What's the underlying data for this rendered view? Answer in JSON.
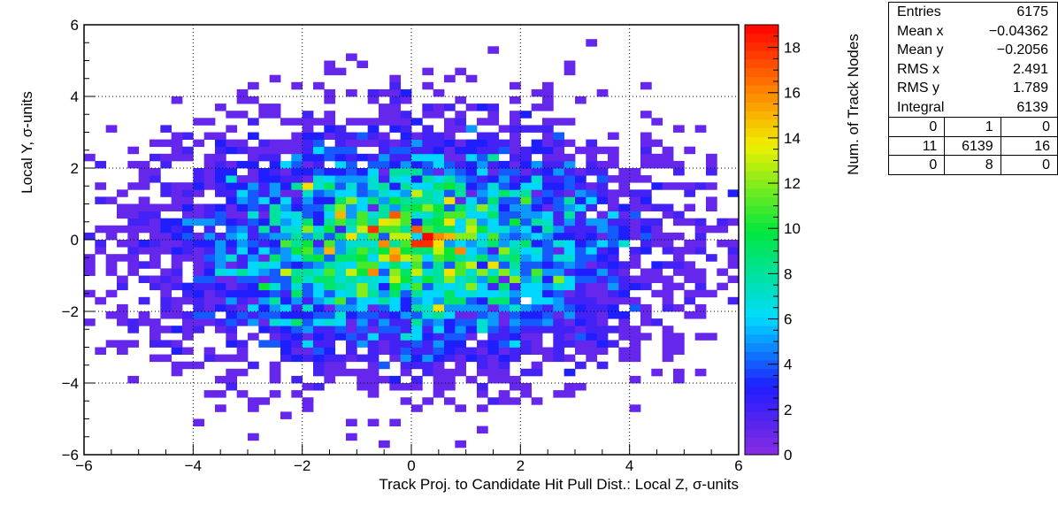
{
  "chart_data": {
    "type": "heatmap",
    "title": "",
    "xlabel": "Track Proj. to Candidate Hit Pull Dist.: Local Z, σ-units",
    "ylabel": "Local Y, σ-units",
    "zlabel": "Num. of Track Nodes",
    "xlim": [
      -6,
      6
    ],
    "ylim": [
      -6,
      6
    ],
    "zlim": [
      0,
      19
    ],
    "bins_x": 60,
    "bins_y": 60,
    "grid": true,
    "x_ticks": [
      "−6",
      "−4",
      "−2",
      "0",
      "2",
      "4",
      "6"
    ],
    "y_ticks": [
      "−6",
      "−4",
      "−2",
      "0",
      "2",
      "4",
      "6"
    ],
    "z_ticks": [
      "0",
      "2",
      "4",
      "6",
      "8",
      "10",
      "12",
      "14",
      "16",
      "18"
    ],
    "distribution": {
      "mean_x": -0.04362,
      "mean_y": -0.2056,
      "rms_x": 2.491,
      "rms_y": 1.789,
      "entries": 6175,
      "peak": 19
    },
    "hot_cells": [
      {
        "x": 0.3,
        "y": 0.1,
        "z": 19
      },
      {
        "x": 0.3,
        "y": -0.1,
        "z": 18
      },
      {
        "x": 0.1,
        "y": 0.3,
        "z": 17
      },
      {
        "x": 0.5,
        "y": 0.1,
        "z": 16
      },
      {
        "x": 0.9,
        "y": -0.3,
        "z": 16
      },
      {
        "x": -1.3,
        "y": 0.7,
        "z": 15
      },
      {
        "x": 0.7,
        "y": 0.5,
        "z": 14
      },
      {
        "x": -0.5,
        "y": 0.5,
        "z": 14
      },
      {
        "x": 0.1,
        "y": 1.3,
        "z": 13
      },
      {
        "x": -0.3,
        "y": 0.1,
        "z": 13
      },
      {
        "x": 1.1,
        "y": 0.3,
        "z": 13
      },
      {
        "x": -0.3,
        "y": -0.9,
        "z": 12
      },
      {
        "x": 1.3,
        "y": 0.9,
        "z": 12
      }
    ]
  },
  "stats_box": {
    "rows": [
      {
        "label": "Entries",
        "value": "6175"
      },
      {
        "label": "Mean x",
        "value": "−0.04362"
      },
      {
        "label": "Mean y",
        "value": "−0.2056"
      },
      {
        "label": "RMS x",
        "value": "2.491"
      },
      {
        "label": "RMS y",
        "value": "1.789"
      },
      {
        "label": "Integral",
        "value": "6139"
      }
    ],
    "grid": [
      [
        "0",
        "1",
        "0"
      ],
      [
        "11",
        "6139",
        "16"
      ],
      [
        "0",
        "8",
        "0"
      ]
    ]
  },
  "colors": {
    "frame": "#000000",
    "background": "#ffffff"
  }
}
